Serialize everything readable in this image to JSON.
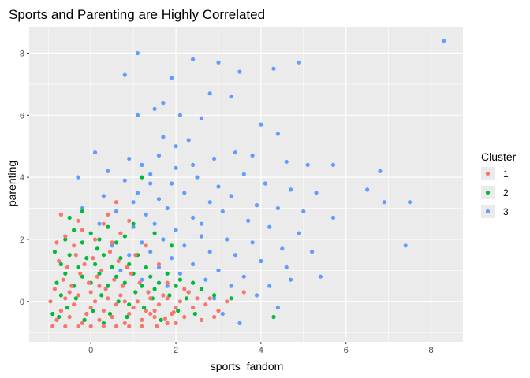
{
  "chart_data": {
    "type": "scatter",
    "title": "Sports and Parenting are Highly Correlated",
    "xlabel": "sports_fandom",
    "ylabel": "parenting",
    "xlim": [
      -1.45,
      8.75
    ],
    "ylim": [
      -1.3,
      8.85
    ],
    "x_ticks": [
      0,
      2,
      4,
      6,
      8
    ],
    "y_ticks": [
      0,
      2,
      4,
      6,
      8
    ],
    "grid": true,
    "legend": {
      "title": "Cluster",
      "position": "right"
    },
    "series": [
      {
        "name": "1",
        "color": "#F8766D",
        "points": [
          [
            -0.8,
            -0.6
          ],
          [
            -0.7,
            -0.3
          ],
          [
            -0.6,
            0.1
          ],
          [
            -0.5,
            -0.5
          ],
          [
            -0.4,
            -0.1
          ],
          [
            -0.3,
            0.2
          ],
          [
            -0.2,
            -0.7
          ],
          [
            -0.1,
            -0.4
          ],
          [
            0.0,
            -0.2
          ],
          [
            0.1,
            0.0
          ],
          [
            0.2,
            -0.6
          ],
          [
            0.3,
            -0.3
          ],
          [
            0.4,
            0.1
          ],
          [
            0.5,
            -0.5
          ],
          [
            0.6,
            -0.1
          ],
          [
            0.7,
            0.2
          ],
          [
            0.8,
            -0.7
          ],
          [
            0.9,
            -0.4
          ],
          [
            1.0,
            -0.2
          ],
          [
            1.1,
            0.0
          ],
          [
            1.2,
            -0.6
          ],
          [
            1.3,
            -0.3
          ],
          [
            1.4,
            0.1
          ],
          [
            1.5,
            -0.5
          ],
          [
            1.6,
            -0.1
          ],
          [
            1.7,
            0.2
          ],
          [
            1.8,
            -0.7
          ],
          [
            1.9,
            -0.4
          ],
          [
            2.0,
            -0.2
          ],
          [
            2.1,
            0.0
          ],
          [
            -0.85,
            0.4
          ],
          [
            -0.65,
            0.7
          ],
          [
            -0.45,
            0.5
          ],
          [
            -0.25,
            0.9
          ],
          [
            -0.05,
            0.6
          ],
          [
            0.15,
            0.8
          ],
          [
            0.35,
            0.4
          ],
          [
            0.55,
            0.7
          ],
          [
            0.75,
            0.5
          ],
          [
            0.95,
            0.9
          ],
          [
            1.15,
            0.6
          ],
          [
            1.35,
            0.3
          ],
          [
            1.55,
            -0.8
          ],
          [
            1.75,
            -0.55
          ],
          [
            1.95,
            -0.35
          ],
          [
            2.2,
            -0.5
          ],
          [
            2.4,
            -0.2
          ],
          [
            2.6,
            -0.6
          ],
          [
            2.8,
            0.1
          ],
          [
            3.0,
            -0.3
          ],
          [
            -0.75,
            1.3
          ],
          [
            -0.55,
            1.1
          ],
          [
            -0.35,
            1.5
          ],
          [
            -0.15,
            1.2
          ],
          [
            0.05,
            1.4
          ],
          [
            0.25,
            1.0
          ],
          [
            0.45,
            1.6
          ],
          [
            0.65,
            1.3
          ],
          [
            0.85,
            1.1
          ],
          [
            1.05,
            1.5
          ],
          [
            -0.8,
            1.9
          ],
          [
            -0.6,
            2.1
          ],
          [
            -0.4,
            1.8
          ],
          [
            -0.2,
            2.3
          ],
          [
            0.1,
            2.0
          ],
          [
            0.3,
            2.5
          ],
          [
            0.5,
            1.9
          ],
          [
            0.7,
            2.2
          ],
          [
            -0.7,
            2.8
          ],
          [
            -0.3,
            2.6
          ],
          [
            0.4,
            2.8
          ],
          [
            0.6,
            3.2
          ],
          [
            0.9,
            2.6
          ],
          [
            1.3,
            1.8
          ],
          [
            1.6,
            1.2
          ],
          [
            1.8,
            0.6
          ],
          [
            2.3,
            0.3
          ],
          [
            2.5,
            0.1
          ],
          [
            2.7,
            -0.1
          ],
          [
            3.6,
            0.3
          ],
          [
            -0.9,
            -0.8
          ],
          [
            -0.6,
            -0.8
          ],
          [
            -0.3,
            -0.8
          ],
          [
            0.0,
            -0.8
          ],
          [
            0.3,
            -0.8
          ],
          [
            0.6,
            -0.8
          ],
          [
            0.9,
            -0.8
          ],
          [
            1.2,
            -0.8
          ],
          [
            1.5,
            -0.3
          ],
          [
            1.8,
            0.1
          ],
          [
            -0.95,
            0.0
          ],
          [
            -0.5,
            0.3
          ],
          [
            0.2,
            0.5
          ],
          [
            0.8,
            0.0
          ],
          [
            1.4,
            -0.4
          ],
          [
            2.0,
            -0.7
          ],
          [
            2.2,
            0.4
          ],
          [
            2.9,
            -0.5
          ],
          [
            3.2,
            0.0
          ],
          [
            0.0,
            0.3
          ]
        ]
      },
      {
        "name": "2",
        "color": "#00BA38",
        "points": [
          [
            -0.75,
            -0.5
          ],
          [
            -0.55,
            -0.2
          ],
          [
            -0.35,
            0.1
          ],
          [
            -0.15,
            -0.6
          ],
          [
            0.05,
            -0.3
          ],
          [
            0.25,
            0.2
          ],
          [
            0.45,
            -0.4
          ],
          [
            0.65,
            0.0
          ],
          [
            0.85,
            -0.5
          ],
          [
            1.05,
            0.3
          ],
          [
            1.25,
            -0.2
          ],
          [
            1.45,
            0.1
          ],
          [
            1.65,
            -0.6
          ],
          [
            1.85,
            0.2
          ],
          [
            2.05,
            -0.3
          ],
          [
            2.25,
            0.1
          ],
          [
            2.45,
            -0.4
          ],
          [
            -0.8,
            0.6
          ],
          [
            -0.6,
            0.9
          ],
          [
            -0.4,
            0.5
          ],
          [
            -0.2,
            0.8
          ],
          [
            0.0,
            0.6
          ],
          [
            0.2,
            0.9
          ],
          [
            0.4,
            0.5
          ],
          [
            0.6,
            0.8
          ],
          [
            0.8,
            0.6
          ],
          [
            1.0,
            0.9
          ],
          [
            1.2,
            0.5
          ],
          [
            1.4,
            0.8
          ],
          [
            1.6,
            0.6
          ],
          [
            1.8,
            0.9
          ],
          [
            2.0,
            0.5
          ],
          [
            -0.7,
            1.2
          ],
          [
            -0.5,
            1.5
          ],
          [
            -0.3,
            1.1
          ],
          [
            -0.1,
            1.4
          ],
          [
            0.1,
            1.2
          ],
          [
            0.3,
            1.5
          ],
          [
            0.5,
            1.1
          ],
          [
            0.7,
            1.4
          ],
          [
            0.9,
            1.2
          ],
          [
            1.1,
            1.5
          ],
          [
            1.3,
            1.1
          ],
          [
            -0.6,
            2.0
          ],
          [
            -0.4,
            2.3
          ],
          [
            -0.2,
            1.9
          ],
          [
            0.0,
            2.2
          ],
          [
            0.2,
            2.0
          ],
          [
            0.4,
            2.4
          ],
          [
            0.6,
            1.9
          ],
          [
            0.8,
            2.1
          ],
          [
            1.0,
            2.5
          ],
          [
            1.2,
            4.0
          ],
          [
            -0.5,
            2.7
          ],
          [
            -0.2,
            2.9
          ],
          [
            1.5,
            2.2
          ],
          [
            1.9,
            1.8
          ],
          [
            2.4,
            0.6
          ],
          [
            2.9,
            0.2
          ],
          [
            3.3,
            0.1
          ],
          [
            4.3,
            -0.5
          ],
          [
            -0.9,
            -0.4
          ],
          [
            -0.7,
            0.2
          ],
          [
            0.3,
            -0.7
          ],
          [
            0.9,
            -0.1
          ],
          [
            1.5,
            0.4
          ],
          [
            2.1,
            0.7
          ],
          [
            2.6,
            0.4
          ],
          [
            -0.85,
            1.6
          ],
          [
            0.15,
            1.7
          ]
        ]
      },
      {
        "name": "3",
        "color": "#619CFF",
        "points": [
          [
            1.1,
            8.0
          ],
          [
            2.4,
            7.8
          ],
          [
            3.0,
            7.7
          ],
          [
            3.5,
            7.4
          ],
          [
            4.3,
            7.5
          ],
          [
            4.9,
            7.7
          ],
          [
            8.3,
            8.4
          ],
          [
            0.8,
            7.3
          ],
          [
            1.9,
            7.2
          ],
          [
            2.8,
            6.7
          ],
          [
            3.3,
            6.6
          ],
          [
            1.5,
            6.2
          ],
          [
            1.7,
            6.4
          ],
          [
            2.1,
            6.0
          ],
          [
            2.6,
            5.9
          ],
          [
            1.1,
            6.0
          ],
          [
            4.0,
            5.7
          ],
          [
            4.4,
            5.4
          ],
          [
            2.0,
            5.0
          ],
          [
            1.7,
            5.3
          ],
          [
            2.3,
            5.2
          ],
          [
            0.1,
            4.8
          ],
          [
            0.9,
            4.6
          ],
          [
            1.2,
            4.4
          ],
          [
            1.6,
            4.7
          ],
          [
            2.4,
            4.4
          ],
          [
            2.9,
            4.6
          ],
          [
            3.4,
            4.8
          ],
          [
            3.8,
            4.7
          ],
          [
            4.6,
            4.5
          ],
          [
            5.1,
            4.4
          ],
          [
            5.7,
            4.4
          ],
          [
            6.8,
            4.2
          ],
          [
            -0.3,
            4.0
          ],
          [
            0.4,
            4.2
          ],
          [
            0.8,
            3.9
          ],
          [
            1.4,
            4.1
          ],
          [
            1.9,
            3.8
          ],
          [
            2.5,
            4.0
          ],
          [
            3.0,
            3.7
          ],
          [
            3.6,
            4.1
          ],
          [
            4.1,
            3.8
          ],
          [
            4.7,
            3.6
          ],
          [
            5.3,
            3.5
          ],
          [
            6.5,
            3.6
          ],
          [
            6.9,
            3.2
          ],
          [
            7.5,
            3.2
          ],
          [
            0.3,
            3.4
          ],
          [
            1.1,
            3.5
          ],
          [
            1.6,
            3.3
          ],
          [
            2.2,
            3.5
          ],
          [
            2.8,
            3.2
          ],
          [
            3.3,
            3.4
          ],
          [
            3.9,
            3.1
          ],
          [
            4.4,
            3.0
          ],
          [
            5.0,
            2.9
          ],
          [
            5.7,
            2.7
          ],
          [
            0.6,
            2.9
          ],
          [
            1.3,
            2.8
          ],
          [
            1.8,
            3.0
          ],
          [
            2.4,
            2.7
          ],
          [
            3.1,
            2.9
          ],
          [
            3.7,
            2.6
          ],
          [
            4.2,
            2.4
          ],
          [
            4.9,
            2.2
          ],
          [
            1.0,
            2.4
          ],
          [
            1.5,
            2.5
          ],
          [
            2.0,
            2.3
          ],
          [
            2.6,
            2.1
          ],
          [
            3.2,
            2.0
          ],
          [
            3.8,
            1.9
          ],
          [
            4.5,
            1.7
          ],
          [
            5.2,
            1.6
          ],
          [
            7.4,
            1.8
          ],
          [
            1.2,
            1.9
          ],
          [
            1.7,
            2.0
          ],
          [
            2.2,
            1.8
          ],
          [
            2.8,
            1.6
          ],
          [
            3.4,
            1.5
          ],
          [
            4.0,
            1.3
          ],
          [
            4.6,
            1.1
          ],
          [
            5.4,
            0.8
          ],
          [
            0.9,
            1.5
          ],
          [
            1.4,
            1.6
          ],
          [
            1.9,
            1.4
          ],
          [
            2.4,
            1.2
          ],
          [
            3.0,
            1.0
          ],
          [
            3.6,
            0.8
          ],
          [
            4.2,
            0.5
          ],
          [
            4.7,
            0.7
          ],
          [
            1.6,
            1.1
          ],
          [
            2.1,
            0.9
          ],
          [
            2.7,
            0.7
          ],
          [
            3.3,
            0.5
          ],
          [
            3.9,
            0.2
          ],
          [
            4.4,
            -0.2
          ],
          [
            3.5,
            -0.7
          ],
          [
            3.1,
            -0.4
          ],
          [
            0.7,
            1.0
          ],
          [
            1.2,
            0.7
          ],
          [
            1.8,
            0.5
          ],
          [
            2.3,
            0.3
          ],
          [
            2.9,
            0.1
          ],
          [
            0.5,
            1.8
          ],
          [
            0.2,
            2.5
          ],
          [
            -0.2,
            3.0
          ],
          [
            2.6,
            2.5
          ],
          [
            1.0,
            3.2
          ],
          [
            1.4,
            3.8
          ],
          [
            2.0,
            4.3
          ]
        ]
      }
    ]
  }
}
